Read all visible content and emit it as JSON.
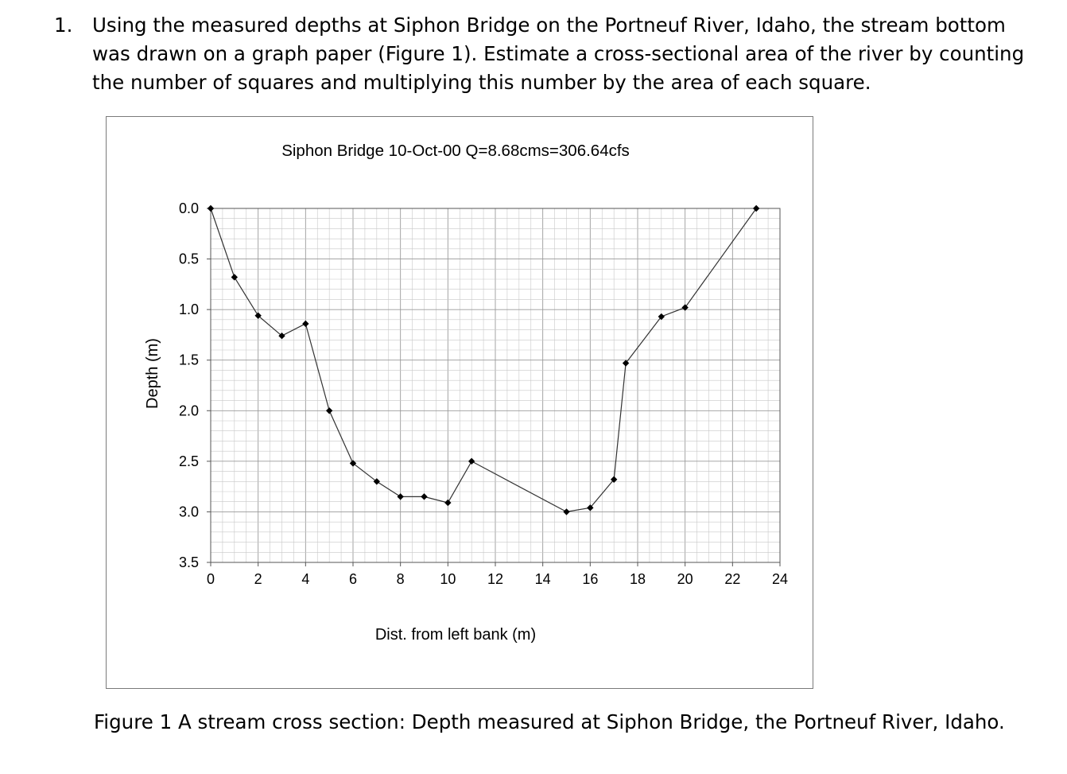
{
  "question": {
    "number": "1.",
    "lines": [
      "Using the measured depths at Siphon Bridge on the Portneuf River, Idaho, the stream bottom",
      "was drawn on a graph paper (Figure 1).  Estimate a cross-sectional area of the river by counting",
      "the number of squares and multiplying this number by the area of each square."
    ]
  },
  "caption": "Figure 1  A stream cross section: Depth measured at Siphon Bridge, the Portneuf River, Idaho.",
  "chart_data": {
    "type": "line",
    "title": "Siphon Bridge 10-Oct-00 Q=8.68cms=306.64cfs",
    "xlabel": "Dist. from left bank (m)",
    "ylabel": "Depth (m)",
    "xlim": [
      0,
      24
    ],
    "ylim": [
      0,
      3.5
    ],
    "y_inverted": true,
    "grid": true,
    "x_ticks": [
      "0",
      "2",
      "4",
      "6",
      "8",
      "10",
      "12",
      "14",
      "16",
      "18",
      "20",
      "22",
      "24"
    ],
    "y_ticks": [
      "0.0",
      "0.5",
      "1.0",
      "1.5",
      "2.0",
      "2.5",
      "3.0",
      "3.5"
    ],
    "series": [
      {
        "marker": "diamond",
        "color": "#333333",
        "x": [
          0,
          1,
          2,
          3,
          4,
          5,
          6,
          7,
          8,
          9,
          10,
          11,
          15,
          16,
          17,
          17.5,
          19,
          20,
          23
        ],
        "y": [
          0.0,
          0.68,
          1.06,
          1.26,
          1.14,
          2.0,
          2.52,
          2.7,
          2.85,
          2.85,
          2.91,
          2.5,
          3.0,
          2.96,
          2.68,
          1.53,
          1.07,
          0.98,
          0.0
        ]
      }
    ]
  }
}
